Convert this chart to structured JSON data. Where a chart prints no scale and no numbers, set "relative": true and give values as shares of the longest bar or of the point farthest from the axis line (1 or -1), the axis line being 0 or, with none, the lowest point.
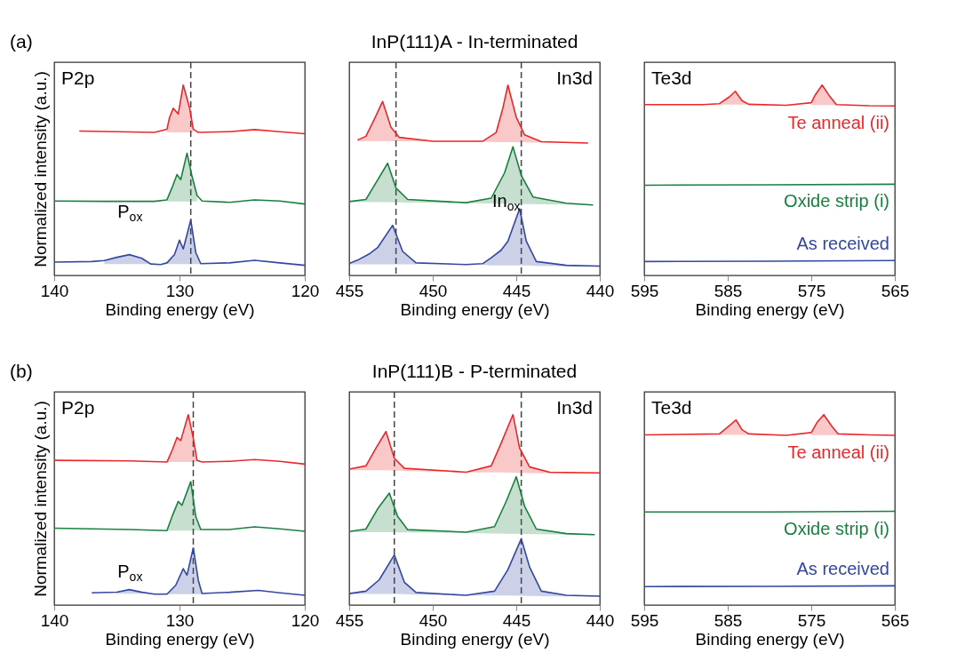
{
  "chart_data": [
    {
      "type": "line",
      "title": "(a)",
      "relative": true,
      "xlabel": "Binding energy (eV)",
      "ylabel": "Normalized intensity (a.u.)",
      "xlim": [
        140,
        120
      ],
      "xticks": [
        140,
        130,
        120
      ],
      "line_style": "solid",
      "annotations": [
        "P2p",
        "P$_{ox}$"
      ],
      "ref_lines": [
        {
          "axis": "x",
          "value": 129.1,
          "color": "#444444",
          "line_style": "dashed"
        }
      ],
      "series": [
        {
          "color": "#e8282b",
          "x": [
            138,
            135,
            132,
            131,
            130.8,
            130.5,
            130.1,
            129.7,
            129.2,
            128.9,
            128.5,
            126,
            124,
            122,
            120
          ],
          "values": [
            0.758,
            0.755,
            0.751,
            0.768,
            0.828,
            0.878,
            0.848,
            1.0,
            0.881,
            0.768,
            0.751,
            0.755,
            0.766,
            0.755,
            0.744
          ],
          "lower": [
            null,
            null,
            null,
            0.751,
            0.751,
            0.751,
            0.751,
            0.751,
            0.751,
            0.751,
            null,
            null,
            null,
            null,
            null
          ],
          "upper": [
            null,
            null,
            null,
            0.768,
            0.828,
            0.878,
            0.848,
            1.0,
            0.881,
            0.768,
            null,
            null,
            null,
            null,
            null
          ]
        },
        {
          "color": "#1a8040",
          "x": [
            140,
            136,
            132,
            131,
            130.6,
            130.2,
            129.9,
            129.4,
            129.0,
            128.6,
            128.2,
            126,
            124,
            122,
            120
          ],
          "values": [
            0.391,
            0.389,
            0.389,
            0.397,
            0.46,
            0.53,
            0.503,
            0.642,
            0.52,
            0.42,
            0.391,
            0.384,
            0.397,
            0.391,
            0.375
          ],
          "lower": [
            null,
            null,
            null,
            0.389,
            0.389,
            0.389,
            0.389,
            0.389,
            0.389,
            0.389,
            null,
            null,
            null,
            null,
            null
          ],
          "upper": [
            null,
            null,
            null,
            0.397,
            0.46,
            0.53,
            0.503,
            0.642,
            0.52,
            0.42,
            null,
            null,
            null,
            null,
            null
          ]
        },
        {
          "color": "#3347a0",
          "x": [
            140,
            137,
            136,
            135,
            134,
            133,
            132.3,
            131.5,
            131,
            130.4,
            130.0,
            129.7,
            129.1,
            128.7,
            128.3,
            126,
            124,
            122,
            120
          ],
          "values": [
            0.07,
            0.073,
            0.078,
            0.095,
            0.109,
            0.09,
            0.06,
            0.057,
            0.066,
            0.11,
            0.185,
            0.139,
            0.291,
            0.12,
            0.062,
            0.066,
            0.079,
            0.066,
            0.053
          ],
          "lower": [
            null,
            null,
            0.06,
            0.06,
            0.06,
            0.06,
            0.06,
            null,
            0.06,
            0.06,
            0.06,
            0.06,
            0.06,
            0.06,
            0.06,
            null,
            null,
            null,
            null
          ],
          "upper": [
            null,
            null,
            0.078,
            0.095,
            0.109,
            0.09,
            0.06,
            null,
            0.066,
            0.11,
            0.185,
            0.139,
            0.291,
            0.12,
            0.062,
            null,
            null,
            null,
            null
          ]
        }
      ]
    },
    {
      "type": "line",
      "title": "InP(111)A - In-terminated",
      "relative": true,
      "xlabel": "Binding energy (eV)",
      "xlim": [
        455,
        440
      ],
      "xticks": [
        455,
        450,
        445,
        440
      ],
      "line_style": "solid",
      "annotations": [
        "In3d",
        "In$_{ox}$"
      ],
      "ref_lines": [
        {
          "axis": "x",
          "value": 452.2,
          "color": "#444444",
          "line_style": "dashed"
        },
        {
          "axis": "x",
          "value": 444.7,
          "color": "#444444",
          "line_style": "dashed"
        }
      ],
      "series": [
        {
          "color": "#e8282b",
          "x": [
            454.5,
            454,
            453.5,
            453.0,
            452.5,
            452,
            450,
            447,
            446.2,
            445.8,
            445.5,
            445.0,
            444.5,
            443.5,
            440.7
          ],
          "values": [
            0.711,
            0.731,
            0.82,
            0.914,
            0.778,
            0.725,
            0.705,
            0.705,
            0.751,
            0.88,
            1.0,
            0.831,
            0.738,
            0.702,
            0.695
          ],
          "lower": [
            0.705,
            0.705,
            0.705,
            0.705,
            0.705,
            0.705,
            0.703,
            0.702,
            0.7,
            0.7,
            0.7,
            0.7,
            0.699,
            0.698,
            0.693
          ],
          "upper": [
            0.711,
            0.731,
            0.82,
            0.914,
            0.778,
            0.725,
            0.705,
            0.705,
            0.751,
            0.88,
            1.0,
            0.831,
            0.738,
            0.702,
            0.695
          ]
        },
        {
          "color": "#1a8040",
          "x": [
            455,
            454,
            453.5,
            452.7,
            452.2,
            451.5,
            448,
            446.5,
            445.7,
            445.2,
            444.7,
            444,
            442,
            440.4
          ],
          "values": [
            0.388,
            0.399,
            0.472,
            0.589,
            0.459,
            0.399,
            0.382,
            0.406,
            0.539,
            0.676,
            0.525,
            0.412,
            0.379,
            0.37
          ],
          "lower": [
            0.385,
            0.385,
            0.385,
            0.385,
            0.384,
            0.383,
            0.38,
            0.378,
            0.377,
            0.376,
            0.375,
            0.374,
            0.372,
            0.368
          ],
          "upper": [
            0.388,
            0.399,
            0.472,
            0.589,
            0.459,
            0.399,
            0.382,
            0.406,
            0.539,
            0.676,
            0.525,
            0.412,
            0.379,
            0.37
          ]
        },
        {
          "color": "#3347a0",
          "x": [
            455,
            454.5,
            453.8,
            453.3,
            452.4,
            451.8,
            451,
            448,
            447,
            446.5,
            445.9,
            445.5,
            444.8,
            444.4,
            443.8,
            442,
            440
          ],
          "values": [
            0.063,
            0.08,
            0.113,
            0.146,
            0.263,
            0.126,
            0.066,
            0.057,
            0.062,
            0.093,
            0.133,
            0.18,
            0.35,
            0.18,
            0.073,
            0.053,
            0.049
          ],
          "lower": [
            0.058,
            0.058,
            0.058,
            0.058,
            0.058,
            0.058,
            0.058,
            null,
            0.055,
            0.052,
            0.052,
            0.052,
            0.052,
            0.052,
            0.05,
            0.048,
            0.046
          ],
          "upper": [
            0.063,
            0.08,
            0.113,
            0.146,
            0.263,
            0.126,
            0.066,
            null,
            0.062,
            0.093,
            0.133,
            0.18,
            0.35,
            0.18,
            0.073,
            0.053,
            0.049
          ]
        }
      ]
    },
    {
      "type": "line",
      "relative": true,
      "xlabel": "Binding energy (eV)",
      "xlim": [
        595,
        565
      ],
      "xticks": [
        595,
        585,
        575,
        565
      ],
      "line_style": "solid",
      "annotations": [
        "Te3d"
      ],
      "series": [
        {
          "name": "Te anneal (ii)",
          "color": "#e8282b",
          "x": [
            595,
            588,
            586,
            584.8,
            584.1,
            583.3,
            582.5,
            578,
            575,
            574.5,
            573.7,
            572.8,
            572,
            568,
            565
          ],
          "values": [
            0.897,
            0.897,
            0.902,
            0.938,
            0.967,
            0.918,
            0.899,
            0.894,
            0.907,
            0.95,
            1.0,
            0.941,
            0.897,
            0.891,
            0.89
          ],
          "lower": [
            null,
            null,
            0.897,
            0.897,
            0.897,
            0.897,
            0.897,
            null,
            0.895,
            0.895,
            0.895,
            0.895,
            0.895,
            null,
            null
          ],
          "upper": [
            null,
            null,
            0.902,
            0.938,
            0.967,
            0.918,
            0.899,
            null,
            0.907,
            0.95,
            1.0,
            0.941,
            0.897,
            null,
            null
          ]
        },
        {
          "name": "Oxide strip (i)",
          "color": "#1a8040",
          "x": [
            595,
            580,
            565
          ],
          "values": [
            0.474,
            0.476,
            0.479
          ]
        },
        {
          "name": "As received",
          "color": "#3347a0",
          "x": [
            595,
            580,
            565
          ],
          "values": [
            0.073,
            0.075,
            0.078
          ]
        }
      ]
    },
    {
      "type": "line",
      "title": "(b)",
      "relative": true,
      "xlabel": "Binding energy (eV)",
      "ylabel": "Normalized intensity (a.u.)",
      "xlim": [
        140,
        120
      ],
      "xticks": [
        140,
        130,
        120
      ],
      "line_style": "solid",
      "annotations": [
        "P2p",
        "P$_{ox}$"
      ],
      "ref_lines": [
        {
          "axis": "x",
          "value": 128.9,
          "color": "#444444",
          "line_style": "dashed"
        }
      ],
      "series": [
        {
          "color": "#e8282b",
          "x": [
            140,
            134,
            131,
            130.6,
            130.2,
            129.9,
            129.3,
            128.9,
            128.6,
            128.2,
            126,
            124,
            122,
            120
          ],
          "values": [
            0.76,
            0.757,
            0.751,
            0.811,
            0.88,
            0.864,
            1.0,
            0.877,
            0.76,
            0.751,
            0.755,
            0.764,
            0.755,
            0.74
          ],
          "lower": [
            null,
            null,
            0.751,
            0.751,
            0.751,
            0.751,
            0.751,
            0.751,
            0.751,
            null,
            null,
            null,
            null,
            null
          ],
          "upper": [
            null,
            null,
            0.751,
            0.811,
            0.88,
            0.864,
            1.0,
            0.877,
            0.76,
            null,
            null,
            null,
            null,
            null
          ]
        },
        {
          "color": "#1a8040",
          "x": [
            140,
            134,
            131,
            130.6,
            130.1,
            129.8,
            129.1,
            128.7,
            128.3,
            126,
            124,
            122,
            120
          ],
          "values": [
            0.404,
            0.397,
            0.391,
            0.464,
            0.544,
            0.524,
            0.648,
            0.464,
            0.397,
            0.397,
            0.411,
            0.4,
            0.387
          ],
          "lower": [
            null,
            null,
            0.391,
            0.391,
            0.391,
            0.391,
            0.391,
            0.391,
            0.391,
            null,
            null,
            null,
            null
          ],
          "upper": [
            null,
            null,
            0.391,
            0.464,
            0.544,
            0.524,
            0.648,
            0.464,
            0.397,
            null,
            null,
            null,
            null
          ]
        },
        {
          "color": "#3347a0",
          "x": [
            137,
            135,
            134,
            133,
            132,
            131,
            130.3,
            129.7,
            129.4,
            128.9,
            128.5,
            128.2,
            126,
            123.7,
            122,
            120
          ],
          "values": [
            0.064,
            0.068,
            0.081,
            0.067,
            0.057,
            0.057,
            0.104,
            0.191,
            0.157,
            0.3,
            0.131,
            0.061,
            0.067,
            0.077,
            0.064,
            0.051
          ],
          "lower": [
            null,
            0.06,
            0.06,
            0.06,
            null,
            0.057,
            0.057,
            0.057,
            0.057,
            0.057,
            0.057,
            0.057,
            null,
            null,
            null,
            null
          ],
          "upper": [
            null,
            0.068,
            0.081,
            0.067,
            null,
            0.057,
            0.104,
            0.191,
            0.157,
            0.3,
            0.131,
            0.061,
            null,
            null,
            null,
            null
          ]
        }
      ]
    },
    {
      "type": "line",
      "title": "InP(111)B - P-terminated",
      "relative": true,
      "xlabel": "Binding energy (eV)",
      "xlim": [
        455,
        440
      ],
      "xticks": [
        455,
        450,
        445,
        440
      ],
      "line_style": "solid",
      "annotations": [
        "In3d"
      ],
      "ref_lines": [
        {
          "axis": "x",
          "value": 452.3,
          "color": "#444444",
          "line_style": "dashed"
        },
        {
          "axis": "x",
          "value": 444.7,
          "color": "#444444",
          "line_style": "dashed"
        }
      ],
      "series": [
        {
          "color": "#e8282b",
          "x": [
            455,
            454,
            453.4,
            452.8,
            452.3,
            451.7,
            448,
            446.5,
            445.9,
            445.2,
            444.8,
            444.2,
            443,
            440
          ],
          "values": [
            0.714,
            0.731,
            0.824,
            0.911,
            0.771,
            0.718,
            0.698,
            0.731,
            0.851,
            1.0,
            0.824,
            0.725,
            0.698,
            0.694
          ],
          "lower": [
            0.708,
            0.708,
            0.708,
            0.708,
            0.707,
            0.705,
            0.696,
            0.696,
            0.696,
            0.695,
            0.694,
            0.693,
            0.692,
            0.69
          ],
          "upper": [
            0.714,
            0.731,
            0.824,
            0.911,
            0.771,
            0.718,
            0.698,
            0.731,
            0.851,
            1.0,
            0.824,
            0.725,
            0.698,
            0.694
          ]
        },
        {
          "color": "#1a8040",
          "x": [
            455,
            454,
            453.3,
            452.6,
            452.1,
            451.5,
            448,
            446.3,
            445.6,
            445.0,
            444.5,
            443.8,
            442,
            440.3
          ],
          "values": [
            0.386,
            0.399,
            0.505,
            0.588,
            0.465,
            0.396,
            0.383,
            0.412,
            0.545,
            0.674,
            0.519,
            0.399,
            0.375,
            0.37
          ],
          "lower": [
            0.383,
            0.383,
            0.383,
            0.383,
            0.382,
            0.381,
            0.378,
            0.376,
            0.375,
            0.374,
            0.373,
            0.372,
            0.37,
            0.366
          ],
          "upper": [
            0.386,
            0.399,
            0.505,
            0.588,
            0.465,
            0.396,
            0.383,
            0.412,
            0.545,
            0.674,
            0.519,
            0.399,
            0.375,
            0.37
          ]
        },
        {
          "color": "#3347a0",
          "x": [
            455,
            454,
            453.2,
            452.3,
            451.7,
            451,
            448,
            446.3,
            445.5,
            444.7,
            444.2,
            443.5,
            442,
            440
          ],
          "values": [
            0.06,
            0.073,
            0.133,
            0.263,
            0.12,
            0.066,
            0.051,
            0.073,
            0.186,
            0.348,
            0.199,
            0.073,
            0.051,
            0.047
          ],
          "lower": [
            0.058,
            0.058,
            0.058,
            0.058,
            0.057,
            0.055,
            0.05,
            0.05,
            0.05,
            0.049,
            0.048,
            0.047,
            0.046,
            0.044
          ],
          "upper": [
            0.06,
            0.073,
            0.133,
            0.263,
            0.12,
            0.066,
            0.051,
            0.073,
            0.186,
            0.348,
            0.199,
            0.073,
            0.051,
            0.047
          ]
        }
      ]
    },
    {
      "type": "line",
      "relative": true,
      "xlabel": "Binding energy (eV)",
      "xlim": [
        595,
        565
      ],
      "xticks": [
        595,
        585,
        575,
        565
      ],
      "line_style": "solid",
      "annotations": [
        "Te3d"
      ],
      "series": [
        {
          "name": "Te anneal (ii)",
          "color": "#e8282b",
          "x": [
            595,
            586,
            584.9,
            584.0,
            583.3,
            582.5,
            578,
            575,
            574.3,
            573.5,
            572.6,
            571.8,
            568,
            565
          ],
          "values": [
            0.894,
            0.899,
            0.939,
            0.972,
            0.921,
            0.899,
            0.891,
            0.906,
            0.96,
            1.0,
            0.943,
            0.899,
            0.894,
            0.891
          ],
          "lower": [
            null,
            0.894,
            0.894,
            0.894,
            0.894,
            0.894,
            null,
            0.892,
            0.892,
            0.892,
            0.892,
            0.892,
            null,
            null
          ],
          "upper": [
            null,
            0.899,
            0.939,
            0.972,
            0.921,
            0.899,
            null,
            0.906,
            0.96,
            1.0,
            0.943,
            0.899,
            null,
            null
          ]
        },
        {
          "name": "Oxide strip (i)",
          "color": "#1a8040",
          "x": [
            595,
            580,
            565
          ],
          "values": [
            0.489,
            0.489,
            0.492
          ]
        },
        {
          "name": "As received",
          "color": "#3347a0",
          "x": [
            595,
            580,
            565
          ],
          "values": [
            0.097,
            0.098,
            0.101
          ]
        }
      ]
    }
  ]
}
